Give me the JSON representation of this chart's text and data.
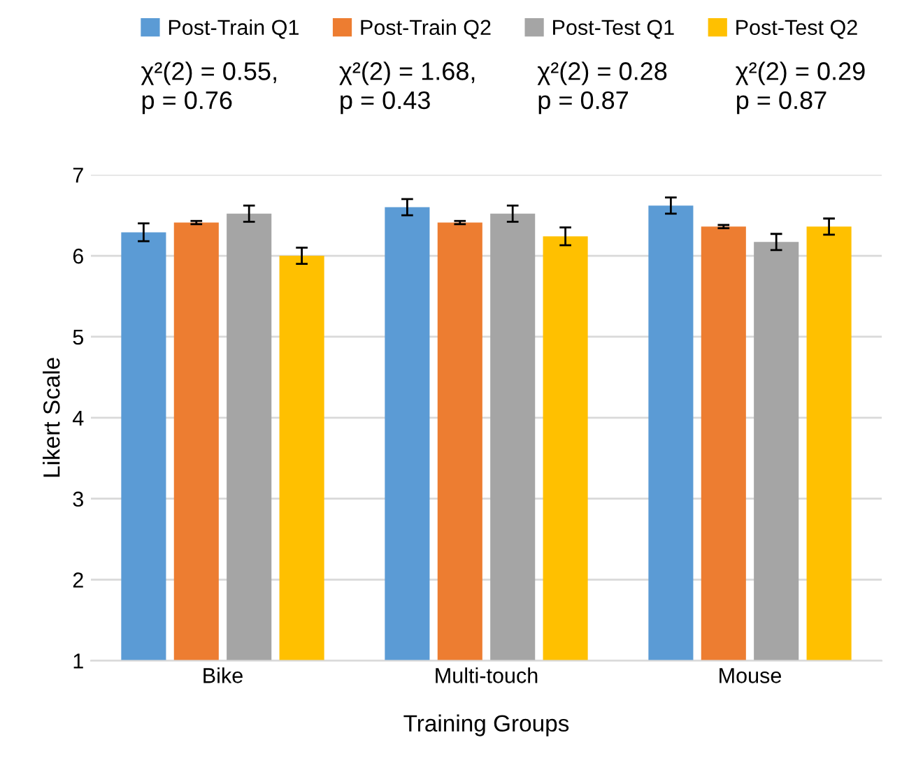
{
  "chart_data": {
    "type": "bar",
    "xlabel": "Training Groups",
    "ylabel": "Likert Scale",
    "categories": [
      "Bike",
      "Multi-touch",
      "Mouse"
    ],
    "series": [
      {
        "name": "Post-Train Q1",
        "color": "#5b9bd5",
        "values": [
          6.29,
          6.6,
          6.62
        ],
        "errors": [
          0.11,
          0.1,
          0.1
        ]
      },
      {
        "name": "Post-Train Q2",
        "color": "#ed7d31",
        "values": [
          6.41,
          6.41,
          6.36
        ],
        "errors": [
          0.02,
          0.02,
          0.02
        ]
      },
      {
        "name": "Post-Test Q1",
        "color": "#a5a5a5",
        "values": [
          6.52,
          6.52,
          6.17
        ],
        "errors": [
          0.1,
          0.1,
          0.1
        ]
      },
      {
        "name": "Post-Test Q2",
        "color": "#ffc000",
        "values": [
          6.0,
          6.24,
          6.36
        ],
        "errors": [
          0.1,
          0.11,
          0.1
        ]
      }
    ],
    "ylim": [
      1,
      7
    ],
    "yticks": [
      1,
      2,
      3,
      4,
      5,
      6,
      7
    ],
    "grid": "y",
    "legend": "top",
    "annotations": [
      "χ²(2) = 0.55,\np = 0.76",
      "χ²(2) = 1.68,\np = 0.43",
      "χ²(2) = 0.28\np = 0.87",
      "χ²(2) = 0.29\np = 0.87"
    ]
  }
}
